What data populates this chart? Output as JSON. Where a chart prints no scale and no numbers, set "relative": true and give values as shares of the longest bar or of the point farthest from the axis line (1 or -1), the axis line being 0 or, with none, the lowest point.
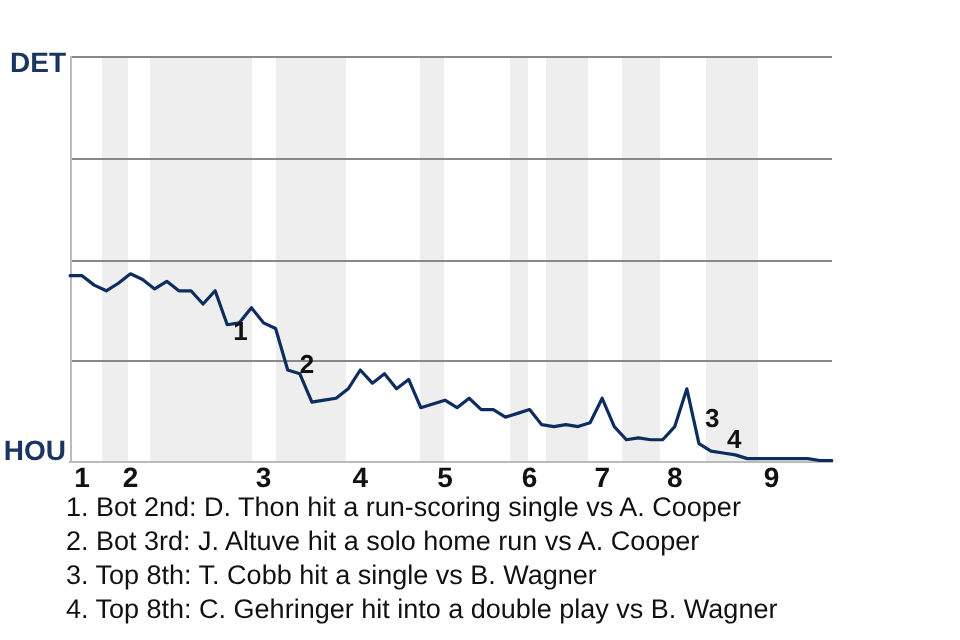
{
  "chart_data": {
    "type": "line",
    "relative": true,
    "categories": [
      null,
      "1",
      null,
      null,
      null,
      "2",
      null,
      null,
      null,
      null,
      null,
      null,
      null,
      null,
      null,
      null,
      "3",
      null,
      null,
      null,
      null,
      null,
      null,
      null,
      "4",
      null,
      null,
      null,
      null,
      null,
      null,
      "5",
      null,
      null,
      null,
      null,
      null,
      null,
      "6",
      null,
      null,
      null,
      null,
      null,
      "7",
      null,
      null,
      null,
      null,
      null,
      "8",
      null,
      null,
      null,
      null,
      null,
      null,
      null,
      "9",
      null,
      null,
      null,
      null,
      null
    ],
    "series": [
      {
        "color": "#0d2d5e",
        "values": [
          0.99,
          0.99,
          0.94,
          0.91,
          0.95,
          1,
          0.97,
          0.92,
          0.96,
          0.91,
          0.91,
          0.84,
          0.91,
          0.73,
          0.74,
          0.82,
          0.74,
          0.71,
          0.49,
          0.47,
          0.32,
          0.33,
          0.34,
          0.39,
          0.49,
          0.42,
          0.47,
          0.39,
          0.44,
          0.29,
          0.31,
          0.33,
          0.29,
          0.34,
          0.28,
          0.28,
          0.24,
          0.26,
          0.28,
          0.2,
          0.19,
          0.2,
          0.19,
          0.21,
          0.34,
          0.19,
          0.12,
          0.13,
          0.12,
          0.12,
          0.19,
          0.39,
          0.1,
          0.06,
          0.05,
          0.04,
          0.02,
          0.02,
          0.02,
          0.02,
          0.02,
          0.02,
          0.01,
          0.01
        ]
      }
    ],
    "legend": false,
    "ref_lines": [
      {
        "axis": "y",
        "value": 0.54,
        "color": "#888888"
      }
    ],
    "marker": "none",
    "line_style": "solid",
    "annotations": [
      "DET",
      "HOU",
      "1",
      "2",
      "3",
      "4",
      "1. Bot 2nd: D. Thon hit a run-scoring single vs A. Cooper",
      "2. Bot 3rd: J. Altuve hit a solo home run vs A. Cooper",
      "3. Top 8th: T. Cobb hit a single vs B. Wagner",
      "4. Top 8th: C. Gehringer hit into a double play vs B. Wagner"
    ]
  }
}
